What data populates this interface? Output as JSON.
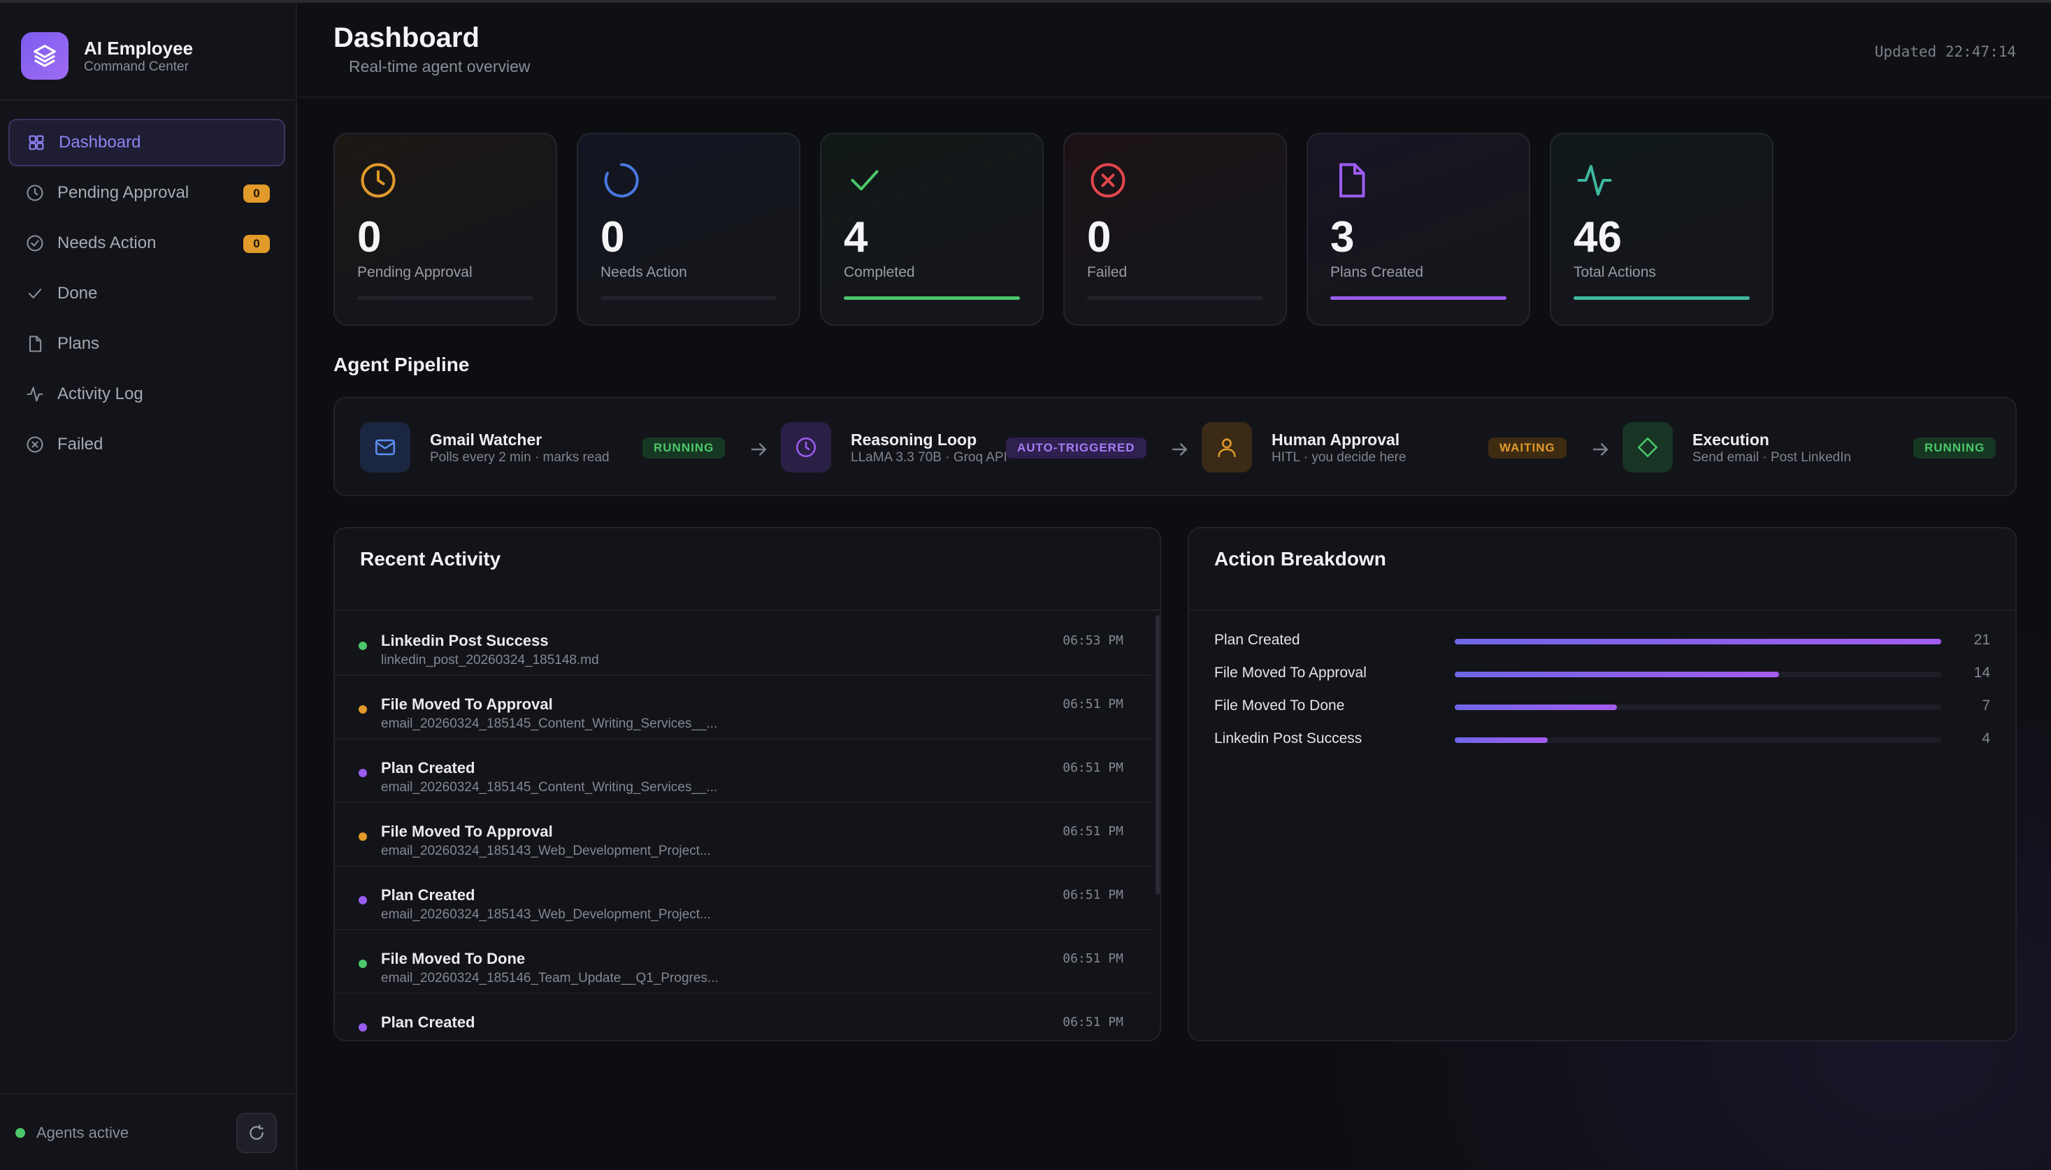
{
  "brand": {
    "title": "AI Employee",
    "subtitle": "Command Center"
  },
  "nav": [
    {
      "label": "Dashboard",
      "icon": "grid-icon",
      "badge": null,
      "active": true
    },
    {
      "label": "Pending Approval",
      "icon": "clock-icon",
      "badge": "0"
    },
    {
      "label": "Needs Action",
      "icon": "check-circle-icon",
      "badge": "0"
    },
    {
      "label": "Done",
      "icon": "check-icon",
      "badge": null
    },
    {
      "label": "Plans",
      "icon": "file-icon",
      "badge": null
    },
    {
      "label": "Activity Log",
      "icon": "activity-icon",
      "badge": null
    },
    {
      "label": "Failed",
      "icon": "x-circle-icon",
      "badge": null
    }
  ],
  "sidebar_footer": {
    "status": "Agents active"
  },
  "header": {
    "title": "Dashboard",
    "subtitle": "Real-time agent overview",
    "updated": "Updated 22:47:14"
  },
  "stats": [
    {
      "value": "0",
      "label": "Pending Approval",
      "icon": "clock-icon",
      "color": "#e29a2b",
      "fill": 0
    },
    {
      "value": "0",
      "label": "Needs Action",
      "icon": "spinner-icon",
      "color": "#4a78e0",
      "fill": 0
    },
    {
      "value": "4",
      "label": "Completed",
      "icon": "check-icon",
      "color": "#4cc76a",
      "fill": 1
    },
    {
      "value": "0",
      "label": "Failed",
      "icon": "x-circle-icon",
      "color": "#e0474c",
      "fill": 0
    },
    {
      "value": "3",
      "label": "Plans Created",
      "icon": "file-icon",
      "color": "#9b5cf0",
      "fill": 1
    },
    {
      "value": "46",
      "label": "Total Actions",
      "icon": "activity-icon",
      "color": "#3fb8a0",
      "fill": 1
    }
  ],
  "pipeline": {
    "title": "Agent Pipeline",
    "stages": [
      {
        "name": "Gmail Watcher",
        "desc": "Polls every 2 min · marks read",
        "badge": "RUNNING",
        "icon": "mail-icon"
      },
      {
        "name": "Reasoning Loop",
        "desc": "LLaMA 3.3 70B · Groq API",
        "badge": "AUTO-TRIGGERED",
        "icon": "clock-icon"
      },
      {
        "name": "Human Approval",
        "desc": "HITL · you decide here",
        "badge": "WAITING",
        "icon": "user-icon"
      },
      {
        "name": "Execution",
        "desc": "Send email · Post LinkedIn",
        "badge": "RUNNING",
        "icon": "diamond-icon"
      }
    ]
  },
  "recent_activity": {
    "title": "Recent Activity",
    "items": [
      {
        "name": "Linkedin Post Success",
        "file": "linkedin_post_20260324_185148.md",
        "time": "06:53 PM",
        "color": "#4cc76a"
      },
      {
        "name": "File Moved To Approval",
        "file": "email_20260324_185145_Content_Writing_Services__...",
        "time": "06:51 PM",
        "color": "#e29a2b"
      },
      {
        "name": "Plan Created",
        "file": "email_20260324_185145_Content_Writing_Services__...",
        "time": "06:51 PM",
        "color": "#9b5cf0"
      },
      {
        "name": "File Moved To Approval",
        "file": "email_20260324_185143_Web_Development_Project...",
        "time": "06:51 PM",
        "color": "#e29a2b"
      },
      {
        "name": "Plan Created",
        "file": "email_20260324_185143_Web_Development_Project...",
        "time": "06:51 PM",
        "color": "#9b5cf0"
      },
      {
        "name": "File Moved To Done",
        "file": "email_20260324_185146_Team_Update__Q1_Progres...",
        "time": "06:51 PM",
        "color": "#4cc76a"
      },
      {
        "name": "Plan Created",
        "file": "",
        "time": "06:51 PM",
        "color": "#9b5cf0"
      }
    ]
  },
  "action_breakdown": {
    "title": "Action Breakdown",
    "rows": [
      {
        "label": "Plan Created",
        "count": "21",
        "value": 21
      },
      {
        "label": "File Moved To Approval",
        "count": "14",
        "value": 14
      },
      {
        "label": "File Moved To Done",
        "count": "7",
        "value": 7
      },
      {
        "label": "Linkedin Post Success",
        "count": "4",
        "value": 4
      }
    ],
    "max": 21
  }
}
